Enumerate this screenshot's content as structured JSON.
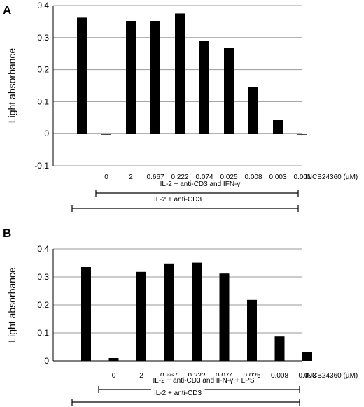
{
  "chart_data": [
    {
      "type": "bar",
      "panel_label": "A",
      "ylabel": "Light absorbance",
      "ylim": [
        -0.1,
        0.4
      ],
      "yticks": [
        "-0.1",
        "0",
        "0.1",
        "0.2",
        "0.3",
        "0.4"
      ],
      "grid": true,
      "categories": [
        "",
        "0",
        "2",
        "0.667",
        "0.222",
        "0.074",
        "0.025",
        "0.008",
        "0.003",
        "0.001"
      ],
      "values": [
        0.362,
        0,
        0.352,
        0.352,
        0.375,
        0.29,
        0.268,
        0.146,
        0.044,
        -0.003
      ],
      "unit_label": "INCB24360 (µM)",
      "brackets": [
        {
          "label": "IL-2 + anti-CD3 and IFN-γ",
          "from": 1,
          "to": 9
        },
        {
          "label": "IL-2 + anti-CD3",
          "from": 0,
          "to": 9
        }
      ]
    },
    {
      "type": "bar",
      "panel_label": "B",
      "ylabel": "Light absorbance",
      "ylim": [
        0,
        0.4
      ],
      "yticks": [
        "0",
        "0.1",
        "0.2",
        "0.3",
        "0.4"
      ],
      "grid": true,
      "categories": [
        "",
        "0",
        "2",
        "0.667",
        "0.222",
        "0.074",
        "0.025",
        "0.008",
        "0.003"
      ],
      "values": [
        0.335,
        0.01,
        0.318,
        0.348,
        0.351,
        0.312,
        0.218,
        0.087,
        0.03
      ],
      "unit_label": "INCB24360 (µM)",
      "brackets": [
        {
          "label": "IL-2 + anti-CD3 and IFN-γ + LPS",
          "from": 1,
          "to": 8
        },
        {
          "label": "IL-2 + anti-CD3",
          "from": 0,
          "to": 8
        }
      ]
    }
  ]
}
